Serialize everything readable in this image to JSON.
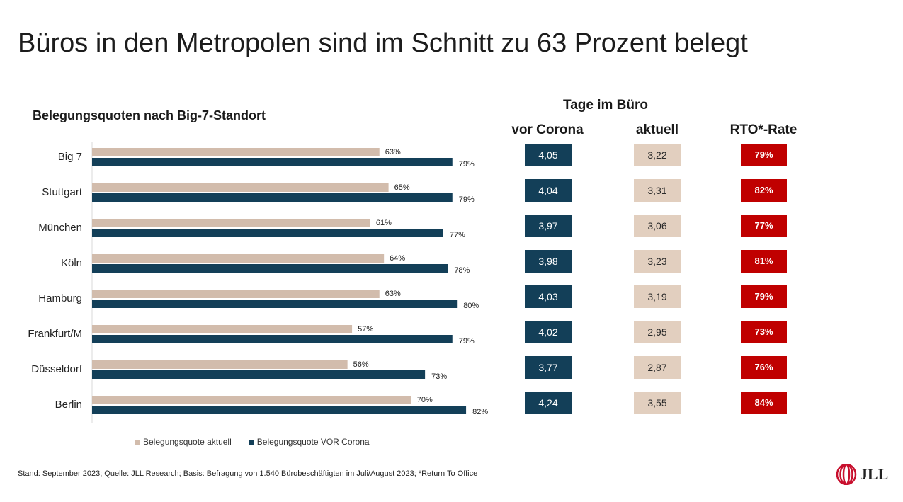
{
  "title": "Büros in den Metropolen sind im Schnitt zu 63 Prozent belegt",
  "chart_data": {
    "type": "bar",
    "orientation": "horizontal",
    "title": "Belegungsquoten nach Big-7-Standort",
    "categories": [
      "Big 7",
      "Stuttgart",
      "München",
      "Köln",
      "Hamburg",
      "Frankfurt/M",
      "Düsseldorf",
      "Berlin"
    ],
    "series": [
      {
        "name": "Belegungsquote aktuell",
        "color": "#d2bcac",
        "values": [
          63,
          65,
          61,
          64,
          63,
          57,
          56,
          70
        ],
        "labels": [
          "63%",
          "65%",
          "61%",
          "64%",
          "63%",
          "57%",
          "56%",
          "70%"
        ]
      },
      {
        "name": "Belegungsquote VOR Corona",
        "color": "#133f58",
        "values": [
          79,
          79,
          77,
          78,
          80,
          79,
          73,
          82
        ],
        "labels": [
          "79%",
          "79%",
          "77%",
          "78%",
          "80%",
          "79%",
          "73%",
          "82%"
        ]
      }
    ],
    "xlim": [
      0,
      100
    ],
    "grid": false,
    "legend_position": "bottom"
  },
  "table": {
    "title": "Tage im Büro",
    "headers": {
      "vor": "vor Corona",
      "aktuell": "aktuell",
      "rto": "RTO*-Rate"
    },
    "rows": [
      {
        "vor": "4,05",
        "aktuell": "3,22",
        "rto": "79%"
      },
      {
        "vor": "4,04",
        "aktuell": "3,31",
        "rto": "82%"
      },
      {
        "vor": "3,97",
        "aktuell": "3,06",
        "rto": "77%"
      },
      {
        "vor": "3,98",
        "aktuell": "3,23",
        "rto": "81%"
      },
      {
        "vor": "4,03",
        "aktuell": "3,19",
        "rto": "79%"
      },
      {
        "vor": "4,02",
        "aktuell": "2,95",
        "rto": "73%"
      },
      {
        "vor": "3,77",
        "aktuell": "2,87",
        "rto": "76%"
      },
      {
        "vor": "4,24",
        "aktuell": "3,55",
        "rto": "84%"
      }
    ]
  },
  "footnote": "Stand: September 2023; Quelle: JLL Research; Basis: Befragung von 1.540 Bürobeschäftigten im Juli/August 2023; *Return To Office",
  "logo": {
    "text": "JLL",
    "color": "#c8102e"
  }
}
